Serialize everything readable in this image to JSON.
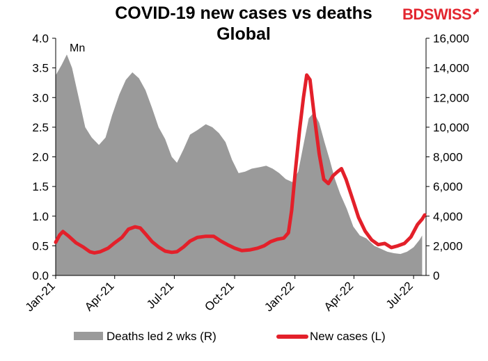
{
  "brand": {
    "part1": "BD",
    "part2": "SWISS",
    "mark": "⬈"
  },
  "colors": {
    "cases": "#e3202a",
    "deaths": "#9a9a9a",
    "brand": "#e3262f"
  },
  "chart_data": {
    "type": "area",
    "title_line1": "COVID-19  new cases  vs deaths",
    "title_line2": "Global",
    "unit_label": "Mn",
    "x_ticks": [
      "Jan-21",
      "Apr-21",
      "Jul-21",
      "Oct-21",
      "Jan-22",
      "Apr-22",
      "Jul-22"
    ],
    "y_left": {
      "lim": [
        0,
        4.0
      ],
      "ticks": [
        "0.0",
        "0.5",
        "1.0",
        "1.5",
        "2.0",
        "2.5",
        "3.0",
        "3.5",
        "4.0"
      ]
    },
    "y_right": {
      "lim": [
        0,
        16000
      ],
      "ticks": [
        "0",
        "2,000",
        "4,000",
        "6,000",
        "8,000",
        "10,000",
        "12,000",
        "14,000",
        "16,000"
      ]
    },
    "legend": [
      "Deaths led 2 wks (R)",
      "New cases (L)"
    ],
    "grid": false,
    "series": [
      {
        "name": "Deaths led 2 wks (R)",
        "axis": "right",
        "type": "area",
        "points": [
          [
            "2021-01-01",
            13500
          ],
          [
            "2021-01-10",
            14200
          ],
          [
            "2021-01-18",
            14900
          ],
          [
            "2021-01-26",
            14000
          ],
          [
            "2021-02-05",
            12000
          ],
          [
            "2021-02-15",
            10000
          ],
          [
            "2021-02-25",
            9300
          ],
          [
            "2021-03-08",
            8800
          ],
          [
            "2021-03-18",
            9300
          ],
          [
            "2021-03-28",
            10800
          ],
          [
            "2021-04-08",
            12200
          ],
          [
            "2021-04-18",
            13200
          ],
          [
            "2021-04-28",
            13700
          ],
          [
            "2021-05-08",
            13300
          ],
          [
            "2021-05-18",
            12500
          ],
          [
            "2021-05-28",
            11300
          ],
          [
            "2021-06-07",
            10000
          ],
          [
            "2021-06-17",
            9200
          ],
          [
            "2021-06-27",
            8000
          ],
          [
            "2021-07-05",
            7600
          ],
          [
            "2021-07-15",
            8500
          ],
          [
            "2021-07-25",
            9500
          ],
          [
            "2021-08-05",
            9800
          ],
          [
            "2021-08-18",
            10200
          ],
          [
            "2021-08-28",
            10000
          ],
          [
            "2021-09-07",
            9600
          ],
          [
            "2021-09-17",
            9000
          ],
          [
            "2021-09-27",
            7800
          ],
          [
            "2021-10-07",
            6900
          ],
          [
            "2021-10-17",
            7000
          ],
          [
            "2021-10-27",
            7200
          ],
          [
            "2021-11-08",
            7300
          ],
          [
            "2021-11-18",
            7400
          ],
          [
            "2021-11-28",
            7200
          ],
          [
            "2021-12-08",
            6900
          ],
          [
            "2021-12-18",
            6500
          ],
          [
            "2021-12-28",
            6300
          ],
          [
            "2022-01-06",
            7000
          ],
          [
            "2022-01-14",
            8800
          ],
          [
            "2022-01-22",
            10600
          ],
          [
            "2022-01-30",
            11000
          ],
          [
            "2022-02-07",
            10300
          ],
          [
            "2022-02-15",
            9000
          ],
          [
            "2022-02-23",
            7800
          ],
          [
            "2022-03-03",
            6500
          ],
          [
            "2022-03-11",
            5500
          ],
          [
            "2022-03-21",
            4500
          ],
          [
            "2022-03-31",
            3300
          ],
          [
            "2022-04-10",
            2700
          ],
          [
            "2022-04-20",
            2500
          ],
          [
            "2022-05-02",
            2000
          ],
          [
            "2022-05-12",
            1800
          ],
          [
            "2022-05-22",
            1600
          ],
          [
            "2022-06-01",
            1500
          ],
          [
            "2022-06-11",
            1450
          ],
          [
            "2022-06-21",
            1600
          ],
          [
            "2022-07-01",
            1900
          ],
          [
            "2022-07-10",
            2400
          ],
          [
            "2022-07-14",
            2700
          ]
        ]
      },
      {
        "name": "New cases (L)",
        "axis": "left",
        "type": "line",
        "points": [
          [
            "2021-01-01",
            0.56
          ],
          [
            "2021-01-07",
            0.68
          ],
          [
            "2021-01-12",
            0.74
          ],
          [
            "2021-01-20",
            0.67
          ],
          [
            "2021-02-01",
            0.55
          ],
          [
            "2021-02-12",
            0.48
          ],
          [
            "2021-02-22",
            0.4
          ],
          [
            "2021-03-01",
            0.38
          ],
          [
            "2021-03-10",
            0.4
          ],
          [
            "2021-03-22",
            0.46
          ],
          [
            "2021-04-01",
            0.55
          ],
          [
            "2021-04-12",
            0.64
          ],
          [
            "2021-04-22",
            0.78
          ],
          [
            "2021-05-02",
            0.82
          ],
          [
            "2021-05-10",
            0.8
          ],
          [
            "2021-05-18",
            0.7
          ],
          [
            "2021-05-28",
            0.57
          ],
          [
            "2021-06-07",
            0.48
          ],
          [
            "2021-06-17",
            0.41
          ],
          [
            "2021-06-27",
            0.39
          ],
          [
            "2021-07-05",
            0.4
          ],
          [
            "2021-07-15",
            0.48
          ],
          [
            "2021-07-25",
            0.58
          ],
          [
            "2021-08-05",
            0.64
          ],
          [
            "2021-08-18",
            0.66
          ],
          [
            "2021-08-30",
            0.66
          ],
          [
            "2021-09-10",
            0.58
          ],
          [
            "2021-09-20",
            0.52
          ],
          [
            "2021-10-01",
            0.46
          ],
          [
            "2021-10-12",
            0.42
          ],
          [
            "2021-10-24",
            0.43
          ],
          [
            "2021-11-05",
            0.46
          ],
          [
            "2021-11-15",
            0.5
          ],
          [
            "2021-11-25",
            0.57
          ],
          [
            "2021-12-05",
            0.61
          ],
          [
            "2021-12-15",
            0.63
          ],
          [
            "2021-12-22",
            0.72
          ],
          [
            "2021-12-27",
            1.1
          ],
          [
            "2022-01-02",
            1.8
          ],
          [
            "2022-01-08",
            2.45
          ],
          [
            "2022-01-14",
            3.0
          ],
          [
            "2022-01-19",
            3.38
          ],
          [
            "2022-01-24",
            3.3
          ],
          [
            "2022-01-31",
            2.65
          ],
          [
            "2022-02-07",
            2.05
          ],
          [
            "2022-02-14",
            1.62
          ],
          [
            "2022-02-21",
            1.55
          ],
          [
            "2022-02-28",
            1.68
          ],
          [
            "2022-03-07",
            1.75
          ],
          [
            "2022-03-13",
            1.8
          ],
          [
            "2022-03-20",
            1.62
          ],
          [
            "2022-03-31",
            1.25
          ],
          [
            "2022-04-08",
            0.98
          ],
          [
            "2022-04-18",
            0.75
          ],
          [
            "2022-04-28",
            0.6
          ],
          [
            "2022-05-08",
            0.52
          ],
          [
            "2022-05-18",
            0.54
          ],
          [
            "2022-05-28",
            0.47
          ],
          [
            "2022-06-07",
            0.5
          ],
          [
            "2022-06-17",
            0.54
          ],
          [
            "2022-06-27",
            0.65
          ],
          [
            "2022-07-07",
            0.86
          ],
          [
            "2022-07-14",
            0.95
          ],
          [
            "2022-07-18",
            1.02
          ]
        ]
      }
    ]
  }
}
